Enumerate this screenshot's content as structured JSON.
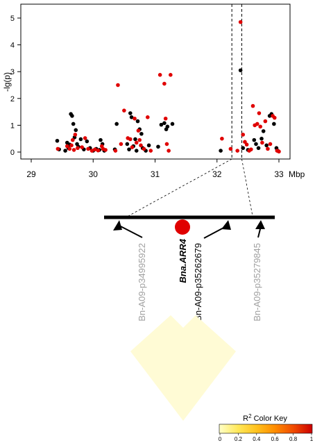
{
  "chart_data": {
    "type": "scatter",
    "title": "",
    "xlabel": "Mbp",
    "ylabel": "-lg(p)",
    "xlim": [
      29,
      33
    ],
    "ylim": [
      0,
      5
    ],
    "xticks": [
      "29",
      "30",
      "31",
      "32",
      "33"
    ],
    "yticks": [
      "0",
      "1",
      "2",
      "3",
      "4",
      "5"
    ],
    "grid": false,
    "highlight_window_mbp": [
      32.24,
      32.4
    ],
    "colors": {
      "black": "#000000",
      "red": "#e00000"
    },
    "series": [
      {
        "color": "black",
        "points": [
          [
            29.42,
            0.42
          ],
          [
            29.45,
            0.1
          ],
          [
            29.55,
            0.05
          ],
          [
            29.58,
            0.35
          ],
          [
            29.6,
            0.15
          ],
          [
            29.62,
            0.28
          ],
          [
            29.64,
            1.42
          ],
          [
            29.66,
            1.35
          ],
          [
            29.68,
            1.05
          ],
          [
            29.7,
            0.55
          ],
          [
            29.72,
            0.82
          ],
          [
            29.74,
            0.3
          ],
          [
            29.76,
            0.2
          ],
          [
            29.8,
            0.48
          ],
          [
            29.85,
            0.1
          ],
          [
            29.9,
            0.4
          ],
          [
            29.95,
            0.15
          ],
          [
            30.0,
            0.05
          ],
          [
            30.05,
            0.12
          ],
          [
            30.1,
            0.08
          ],
          [
            30.12,
            0.45
          ],
          [
            30.15,
            0.3
          ],
          [
            30.18,
            0.05
          ],
          [
            30.35,
            0.1
          ],
          [
            30.38,
            1.05
          ],
          [
            30.55,
            0.3
          ],
          [
            30.58,
            0.1
          ],
          [
            30.6,
            1.45
          ],
          [
            30.62,
            1.3
          ],
          [
            30.65,
            0.22
          ],
          [
            30.68,
            0.48
          ],
          [
            30.7,
            0.05
          ],
          [
            30.72,
            1.15
          ],
          [
            30.75,
            0.85
          ],
          [
            30.78,
            0.68
          ],
          [
            30.8,
            0.15
          ],
          [
            30.85,
            0.05
          ],
          [
            30.9,
            0.25
          ],
          [
            31.05,
            0.2
          ],
          [
            31.1,
            1.02
          ],
          [
            31.15,
            1.08
          ],
          [
            31.18,
            0.85
          ],
          [
            31.2,
            0.95
          ],
          [
            31.28,
            1.05
          ],
          [
            32.06,
            0.05
          ],
          [
            32.38,
            3.05
          ],
          [
            32.42,
            0.15
          ],
          [
            32.5,
            0.08
          ],
          [
            32.6,
            0.45
          ],
          [
            32.63,
            0.3
          ],
          [
            32.67,
            0.15
          ],
          [
            32.72,
            0.5
          ],
          [
            32.75,
            0.78
          ],
          [
            32.8,
            0.25
          ],
          [
            32.85,
            1.35
          ],
          [
            32.88,
            1.42
          ],
          [
            32.92,
            1.05
          ],
          [
            32.96,
            0.15
          ],
          [
            32.98,
            0.05
          ]
        ]
      },
      {
        "color": "red",
        "points": [
          [
            29.43,
            0.12
          ],
          [
            29.58,
            0.22
          ],
          [
            29.62,
            0.12
          ],
          [
            29.65,
            0.25
          ],
          [
            29.67,
            0.45
          ],
          [
            29.69,
            0.08
          ],
          [
            29.71,
            0.65
          ],
          [
            29.75,
            0.15
          ],
          [
            29.82,
            0.18
          ],
          [
            29.87,
            0.52
          ],
          [
            29.92,
            0.12
          ],
          [
            29.98,
            0.05
          ],
          [
            30.03,
            0.1
          ],
          [
            30.08,
            0.06
          ],
          [
            30.14,
            0.22
          ],
          [
            30.16,
            0.12
          ],
          [
            30.2,
            0.08
          ],
          [
            30.36,
            0.05
          ],
          [
            30.4,
            2.5
          ],
          [
            30.45,
            0.3
          ],
          [
            30.5,
            1.55
          ],
          [
            30.56,
            0.52
          ],
          [
            30.6,
            0.48
          ],
          [
            30.63,
            0.18
          ],
          [
            30.67,
            1.25
          ],
          [
            30.7,
            0.35
          ],
          [
            30.73,
            0.8
          ],
          [
            30.75,
            0.45
          ],
          [
            30.77,
            0.25
          ],
          [
            30.82,
            0.12
          ],
          [
            30.88,
            1.3
          ],
          [
            30.93,
            0.05
          ],
          [
            31.08,
            2.88
          ],
          [
            31.15,
            2.55
          ],
          [
            31.17,
            1.25
          ],
          [
            31.19,
            0.3
          ],
          [
            31.25,
            2.88
          ],
          [
            31.22,
            0.05
          ],
          [
            32.08,
            0.5
          ],
          [
            32.22,
            0.12
          ],
          [
            32.33,
            0.05
          ],
          [
            32.38,
            4.85
          ],
          [
            32.42,
            0.65
          ],
          [
            32.45,
            0.38
          ],
          [
            32.48,
            0.28
          ],
          [
            32.52,
            0.05
          ],
          [
            32.55,
            0.1
          ],
          [
            32.58,
            1.72
          ],
          [
            32.61,
            1.0
          ],
          [
            32.65,
            1.05
          ],
          [
            32.68,
            1.45
          ],
          [
            32.7,
            0.95
          ],
          [
            32.73,
            0.35
          ],
          [
            32.78,
            1.15
          ],
          [
            32.82,
            0.12
          ],
          [
            32.86,
            0.3
          ],
          [
            32.9,
            1.35
          ],
          [
            32.93,
            1.28
          ],
          [
            32.97,
            0.05
          ],
          [
            33.0,
            0.02
          ]
        ]
      }
    ],
    "gene_map": {
      "genes": [
        {
          "label": "Bn-A09-p34995922",
          "color": "#a0a0a0",
          "style": "normal"
        },
        {
          "label": "Bna.ARR4",
          "color": "#000000",
          "style": "bold-italic"
        },
        {
          "label": "Bn-A09-p35262679",
          "color": "#000000",
          "style": "normal"
        },
        {
          "label": "Bn-A09-p35279845",
          "color": "#a0a0a0",
          "style": "normal"
        }
      ],
      "ld_fill_color": "#fffbd5"
    },
    "color_key": {
      "title_main": "R",
      "title_sup": "2",
      "title_rest": " Color Key",
      "ticks": [
        "0",
        "0.2",
        "0.4",
        "0.6",
        "0.8",
        "1"
      ],
      "gradient": [
        "#ffffc8",
        "#ffe85a",
        "#ffc21e",
        "#ff8c00",
        "#f04a00",
        "#cc0000"
      ]
    }
  }
}
